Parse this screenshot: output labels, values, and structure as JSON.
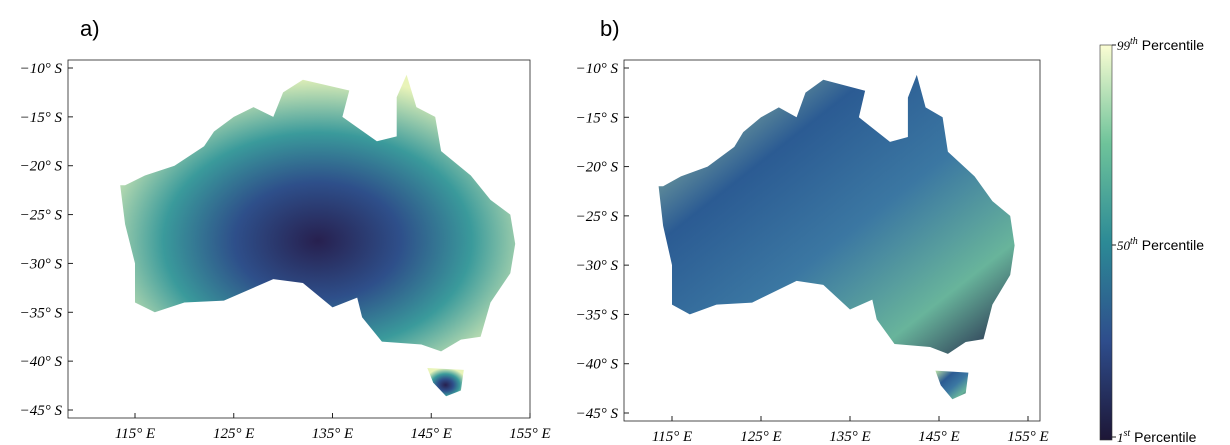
{
  "panels": [
    {
      "label": "a)",
      "yticks": [
        "−10° S",
        "−15° S",
        "−20° S",
        "−25° S",
        "−30° S",
        "−35° S",
        "−40° S",
        "−45° S"
      ],
      "xticks": [
        "115° E",
        "125° E",
        "135° E",
        "145° E",
        "155° E"
      ]
    },
    {
      "label": "b)",
      "yticks": [
        "−10° S",
        "−15° S",
        "−20° S",
        "−25° S",
        "−30° S",
        "−35° S",
        "−40° S",
        "−45° S"
      ],
      "xticks": [
        "115° E",
        "125° E",
        "135° E",
        "145° E",
        "155° E"
      ]
    }
  ],
  "colorbar": {
    "labels": [
      {
        "number": "99",
        "sup": "th",
        "text": "Percentile"
      },
      {
        "number": "50",
        "sup": "th",
        "text": "Percentile"
      },
      {
        "number": "1",
        "sup": "st",
        "text": "Percentile"
      }
    ]
  }
}
